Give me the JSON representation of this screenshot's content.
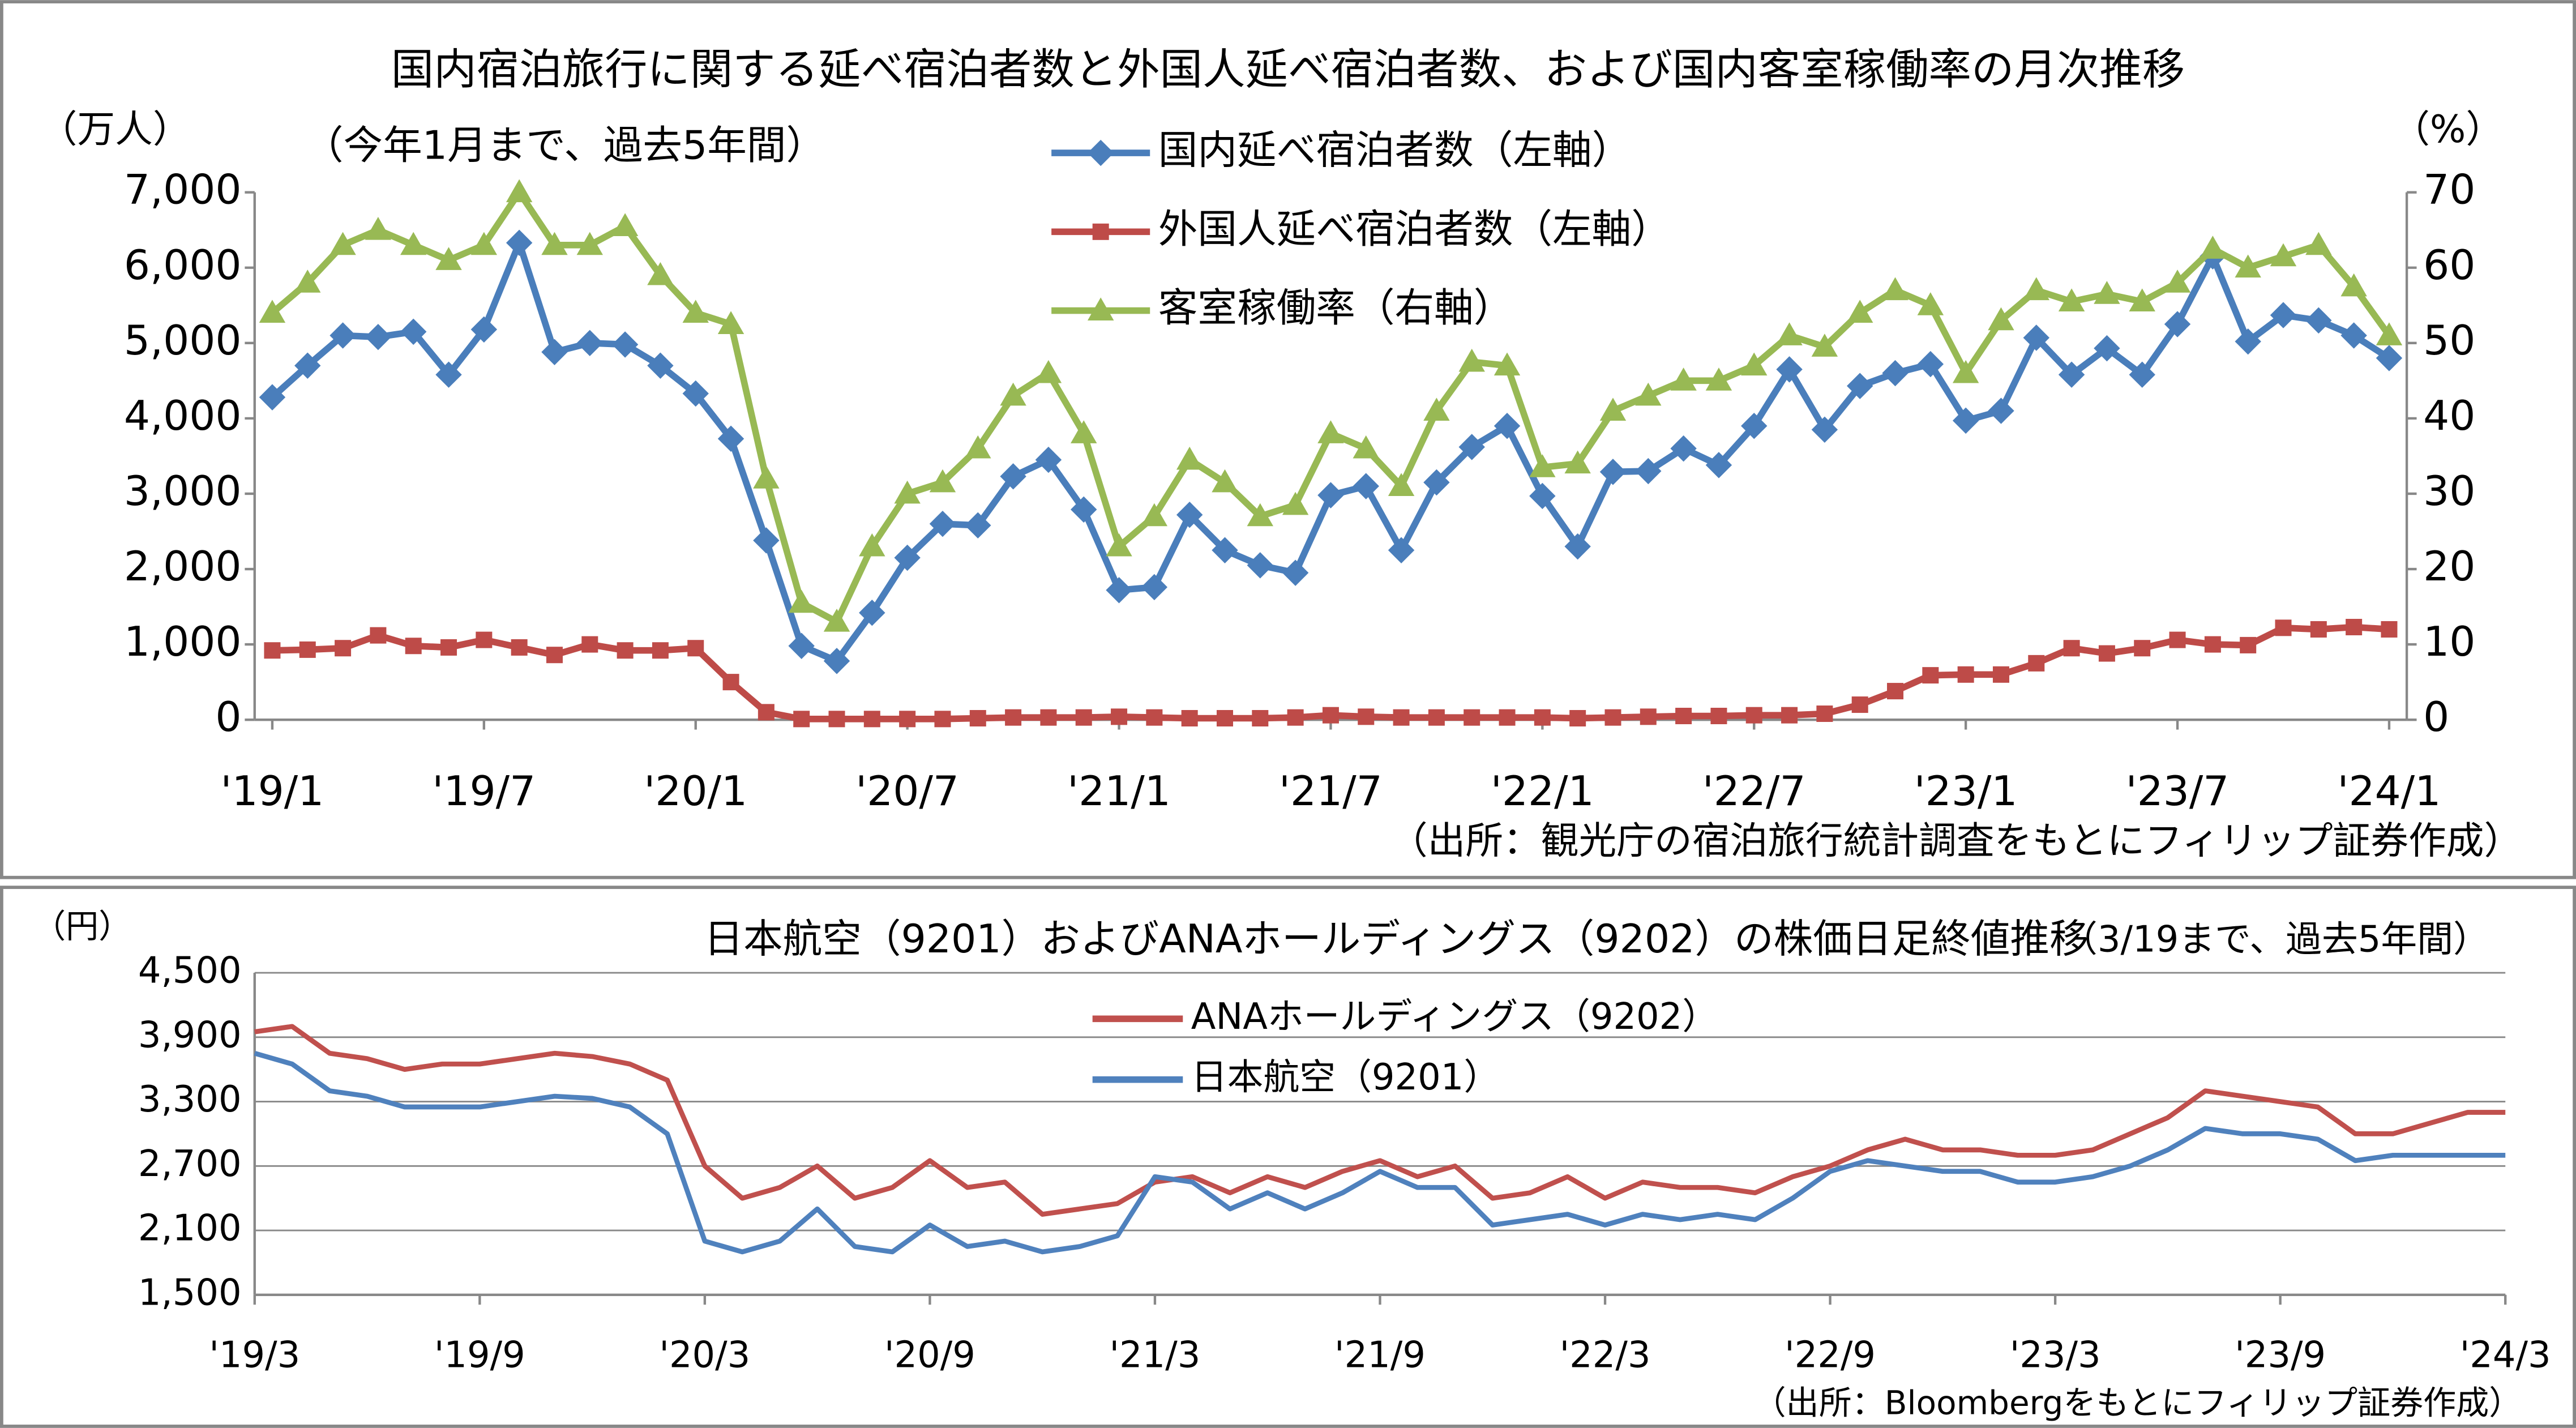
{
  "chart_data": [
    {
      "type": "line",
      "title": "国内宿泊旅行に関する延べ宿泊者数と外国人延べ宿泊者数、および国内客室稼働率の月次推移",
      "subtitle": "（今年1月まで、過去5年間）",
      "y_label": "（万人）",
      "y2_label": "（%）",
      "source": "（出所：観光庁の宿泊旅行統計調査をもとにフィリップ証券作成）",
      "categories": [
        "'19/1",
        null,
        null,
        null,
        null,
        null,
        "'19/7",
        null,
        null,
        null,
        null,
        null,
        "'20/1",
        null,
        null,
        null,
        null,
        null,
        "'20/7",
        null,
        null,
        null,
        null,
        null,
        "'21/1",
        null,
        null,
        null,
        null,
        null,
        "'21/7",
        null,
        null,
        null,
        null,
        null,
        "'22/1",
        null,
        null,
        null,
        null,
        null,
        "'22/7",
        null,
        null,
        null,
        null,
        null,
        "'23/1",
        null,
        null,
        null,
        null,
        null,
        "'23/7",
        null,
        null,
        null,
        null,
        null,
        "'24/1"
      ],
      "series": [
        {
          "name": "国内延べ宿泊者数（左軸）",
          "color": "#4a7ebb",
          "marker": "diamond",
          "values": [
            4280,
            4700,
            5100,
            5080,
            5150,
            4580,
            5180,
            6330,
            4880,
            5000,
            4980,
            4700,
            4330,
            3730,
            2380,
            980,
            780,
            1420,
            2150,
            2600,
            2580,
            3230,
            3450,
            2790,
            1720,
            1760,
            2720,
            2250,
            2050,
            1950,
            2980,
            3100,
            2250,
            3150,
            3620,
            3900,
            2970,
            2300,
            3290,
            3300,
            3600,
            3380,
            3900,
            4650,
            3850,
            4430,
            4600,
            4720,
            3970,
            4100,
            5070,
            4580,
            4930,
            4580,
            5250,
            6150,
            5020,
            5370,
            5300,
            5100,
            4800
          ]
        },
        {
          "name": "外国人延べ宿泊者数（左軸）",
          "color": "#be4b48",
          "marker": "square",
          "values": [
            920,
            930,
            950,
            1120,
            980,
            960,
            1060,
            960,
            860,
            1000,
            920,
            920,
            950,
            500,
            100,
            10,
            10,
            10,
            10,
            10,
            20,
            30,
            30,
            30,
            40,
            30,
            20,
            20,
            20,
            30,
            60,
            40,
            30,
            30,
            30,
            30,
            30,
            20,
            30,
            40,
            50,
            50,
            60,
            60,
            80,
            200,
            380,
            590,
            600,
            600,
            750,
            950,
            880,
            950,
            1060,
            1000,
            990,
            1220,
            1200,
            1230,
            1200
          ]
        },
        {
          "name": "客室稼働率（右軸）",
          "color": "#98b954",
          "marker": "triangle",
          "axis": "y2",
          "values": [
            54,
            58,
            63,
            65,
            63,
            61,
            63,
            70,
            63,
            63,
            65.5,
            59,
            54,
            52.5,
            32,
            15.5,
            13,
            23,
            30,
            31.5,
            36,
            43,
            46,
            38,
            23,
            27,
            34.5,
            31.5,
            27,
            28.5,
            38,
            36,
            31,
            41,
            47.5,
            47,
            33.5,
            34,
            41,
            43,
            45,
            45,
            47,
            51,
            49.5,
            54,
            57,
            55,
            46,
            53,
            57,
            55.5,
            56.5,
            55.5,
            58,
            62.5,
            60,
            61.5,
            63,
            57.5,
            51
          ]
        }
      ],
      "ylim": [
        0,
        7000
      ],
      "yticks": [
        0,
        {
          "value": 1000,
          "label": "1,000"
        },
        {
          "value": 2000,
          "label": "2,000"
        },
        {
          "value": 3000,
          "label": "3,000"
        },
        {
          "value": 4000,
          "label": "4,000"
        },
        {
          "value": 5000,
          "label": "5,000"
        },
        {
          "value": 6000,
          "label": "6,000"
        },
        {
          "value": 7000,
          "label": "7,000"
        }
      ],
      "y2lim": [
        0,
        70
      ],
      "y2ticks": [
        0,
        10,
        20,
        30,
        40,
        50,
        60,
        70
      ],
      "grid": false
    },
    {
      "type": "line",
      "title": "日本航空（9201）およびANAホールディングス（9202）の株価日足終値推移",
      "subtitle": "（3/19まで、過去5年間）",
      "y_label": "（円）",
      "source": "（出所：Bloombergをもとにフィリップ証券作成）",
      "categories": [
        "'19/3",
        null,
        null,
        null,
        null,
        null,
        "'19/9",
        null,
        null,
        null,
        null,
        null,
        "'20/3",
        null,
        null,
        null,
        null,
        null,
        "'20/9",
        null,
        null,
        null,
        null,
        null,
        "'21/3",
        null,
        null,
        null,
        null,
        null,
        "'21/9",
        null,
        null,
        null,
        null,
        null,
        "'22/3",
        null,
        null,
        null,
        null,
        null,
        "'22/9",
        null,
        null,
        null,
        null,
        null,
        "'23/3",
        null,
        null,
        null,
        null,
        null,
        "'23/9",
        null,
        null,
        null,
        null,
        null,
        "'24/3"
      ],
      "series": [
        {
          "name": "ANAホールディングス（9202）",
          "color": "#c0504d",
          "values": [
            3950,
            4000,
            3750,
            3700,
            3600,
            3650,
            3650,
            3700,
            3750,
            3720,
            3650,
            3500,
            2700,
            2400,
            2500,
            2700,
            2400,
            2500,
            2750,
            2500,
            2550,
            2250,
            2300,
            2350,
            2550,
            2600,
            2450,
            2600,
            2500,
            2650,
            2750,
            2600,
            2700,
            2400,
            2450,
            2600,
            2400,
            2550,
            2500,
            2500,
            2450,
            2600,
            2700,
            2850,
            2950,
            2850,
            2850,
            2800,
            2800,
            2850,
            3000,
            3150,
            3400,
            3350,
            3300,
            3250,
            3000,
            3000,
            3100,
            3200,
            3200
          ]
        },
        {
          "name": "日本航空（9201）",
          "color": "#4f81bd",
          "values": [
            3750,
            3650,
            3400,
            3350,
            3250,
            3250,
            3250,
            3300,
            3350,
            3330,
            3250,
            3000,
            2000,
            1900,
            2000,
            2300,
            1950,
            1900,
            2150,
            1950,
            2000,
            1900,
            1950,
            2050,
            2600,
            2550,
            2300,
            2450,
            2300,
            2450,
            2650,
            2500,
            2500,
            2150,
            2200,
            2250,
            2150,
            2250,
            2200,
            2250,
            2200,
            2400,
            2650,
            2750,
            2700,
            2650,
            2650,
            2550,
            2550,
            2600,
            2700,
            2850,
            3050,
            3000,
            3000,
            2950,
            2750,
            2800,
            2800,
            2800,
            2800
          ]
        }
      ],
      "ylim": [
        1500,
        4500
      ],
      "yticks": [
        {
          "value": 1500,
          "label": "1,500"
        },
        {
          "value": 2100,
          "label": "2,100"
        },
        {
          "value": 2700,
          "label": "2,700"
        },
        {
          "value": 3300,
          "label": "3,300"
        },
        {
          "value": 3900,
          "label": "3,900"
        },
        {
          "value": 4500,
          "label": "4,500"
        }
      ],
      "grid": true
    }
  ]
}
